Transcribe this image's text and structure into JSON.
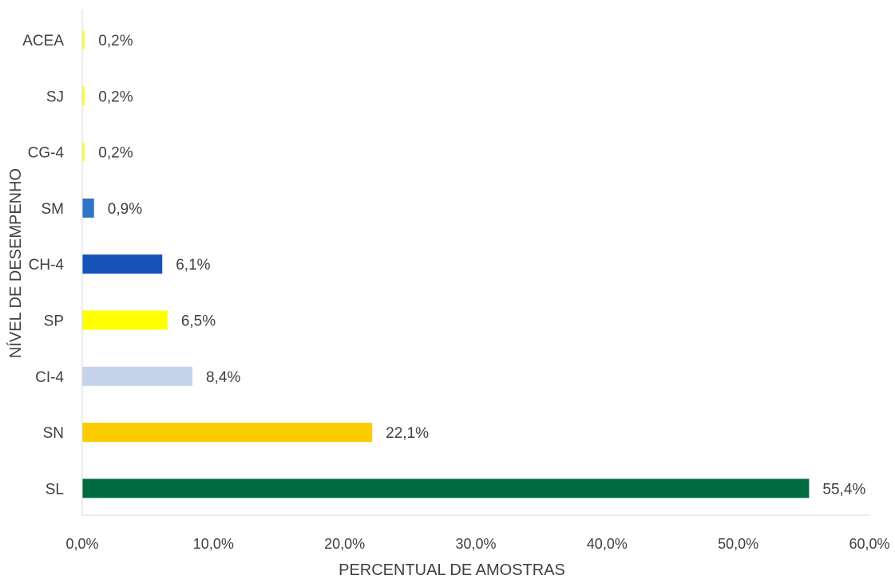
{
  "chart_data": {
    "type": "bar",
    "orientation": "horizontal",
    "categories": [
      "ACEA",
      "SJ",
      "CG-4",
      "SM",
      "CH-4",
      "SP",
      "CI-4",
      "SN",
      "SL"
    ],
    "values": [
      0.2,
      0.2,
      0.2,
      0.9,
      6.1,
      6.5,
      8.4,
      22.1,
      55.4
    ],
    "value_labels": [
      "0,2%",
      "0,2%",
      "0,2%",
      "0,9%",
      "6,1%",
      "6,5%",
      "8,4%",
      "22,1%",
      "55,4%"
    ],
    "colors": [
      "#ffff33",
      "#ffff33",
      "#ffff33",
      "#2e75c6",
      "#1553b8",
      "#ffff00",
      "#c5d3ea",
      "#fccc00",
      "#006b3e"
    ],
    "xlabel": "PERCENTUAL DE AMOSTRAS",
    "ylabel": "NÍVEL DE DESEMPENHO",
    "xlim": [
      0,
      60
    ],
    "xticks": [
      0,
      10,
      20,
      30,
      40,
      50,
      60
    ],
    "xtick_labels": [
      "0,0%",
      "10,0%",
      "20,0%",
      "30,0%",
      "40,0%",
      "50,0%",
      "60,0%"
    ],
    "grid": false,
    "legend": "none"
  }
}
